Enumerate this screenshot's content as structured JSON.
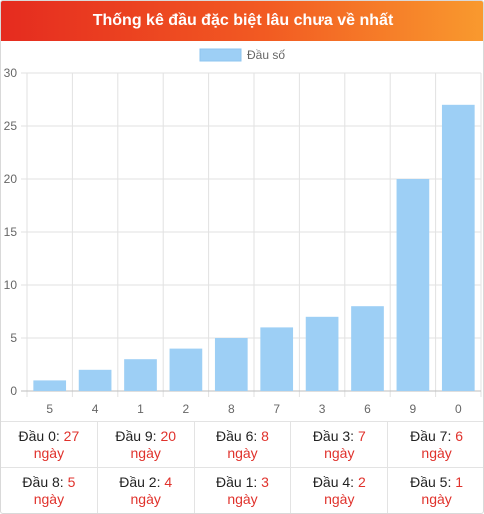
{
  "header": {
    "title": "Thống kê đầu đặc biệt lâu chưa về nhất"
  },
  "chart_data": {
    "type": "bar",
    "categories": [
      "5",
      "4",
      "1",
      "2",
      "8",
      "7",
      "3",
      "6",
      "9",
      "0"
    ],
    "series": [
      {
        "name": "Đầu số",
        "values": [
          1,
          2,
          3,
          4,
          5,
          6,
          7,
          8,
          20,
          27
        ],
        "color": "#9dcff5"
      }
    ],
    "yticks": [
      "0",
      "5",
      "10",
      "15",
      "20",
      "25",
      "30"
    ],
    "ylim": [
      0,
      30
    ],
    "grid": true,
    "legend_position": "top-center"
  },
  "stats": {
    "unit": "ngày",
    "rows": [
      [
        {
          "label": "Đầu 0:",
          "value": "27"
        },
        {
          "label": "Đầu 9:",
          "value": "20"
        },
        {
          "label": "Đầu 6:",
          "value": "8"
        },
        {
          "label": "Đầu 3:",
          "value": "7"
        },
        {
          "label": "Đầu 7:",
          "value": "6"
        }
      ],
      [
        {
          "label": "Đầu 8:",
          "value": "5"
        },
        {
          "label": "Đầu 2:",
          "value": "4"
        },
        {
          "label": "Đầu 1:",
          "value": "3"
        },
        {
          "label": "Đầu 4:",
          "value": "2"
        },
        {
          "label": "Đầu 5:",
          "value": "1"
        }
      ]
    ]
  }
}
